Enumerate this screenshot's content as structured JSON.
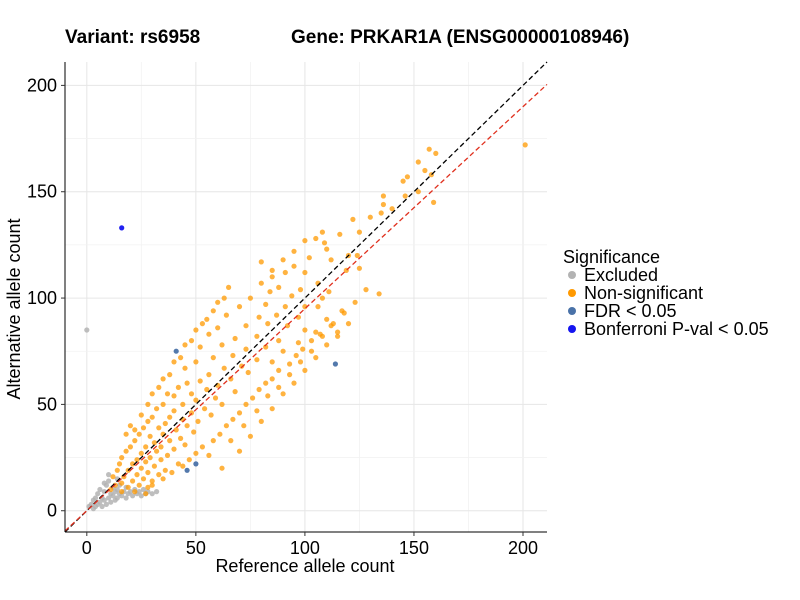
{
  "chart_data": {
    "type": "scatter",
    "title_left": "Variant: rs6958",
    "title_right": "Gene: PRKAR1A (ENSG00000108946)",
    "xlabel": "Reference allele count",
    "ylabel": "Alternative allele count",
    "xlim": [
      -10,
      211
    ],
    "ylim": [
      -10,
      211
    ],
    "xticks": [
      0,
      50,
      100,
      150,
      200
    ],
    "yticks": [
      0,
      50,
      100,
      150,
      200
    ],
    "grid": true,
    "legend": {
      "title": "Significance",
      "position": "right",
      "entries": [
        {
          "label": "Excluded",
          "color": "#b3b3b3"
        },
        {
          "label": "Non-significant",
          "color": "#ff9900"
        },
        {
          "label": "FDR < 0.05",
          "color": "#4a72a8"
        },
        {
          "label": "Bonferroni P-val < 0.05",
          "color": "#1515f0"
        }
      ]
    },
    "reference_lines": [
      {
        "name": "identity",
        "slope": 1.0,
        "color": "#000000",
        "style": "dashed"
      },
      {
        "name": "fit",
        "slope": 0.95,
        "color": "#e0301e",
        "style": "dashed"
      }
    ],
    "series": [
      {
        "name": "Excluded",
        "color": "#b3b3b3",
        "points": [
          [
            0,
            85
          ],
          [
            1,
            2
          ],
          [
            2,
            3
          ],
          [
            3,
            1
          ],
          [
            3,
            5
          ],
          [
            4,
            2
          ],
          [
            4,
            6
          ],
          [
            5,
            3
          ],
          [
            5,
            8
          ],
          [
            6,
            4
          ],
          [
            6,
            10
          ],
          [
            7,
            2
          ],
          [
            7,
            6
          ],
          [
            8,
            5
          ],
          [
            8,
            9
          ],
          [
            9,
            3
          ],
          [
            9,
            12
          ],
          [
            10,
            6
          ],
          [
            10,
            14
          ],
          [
            11,
            4
          ],
          [
            11,
            8
          ],
          [
            12,
            7
          ],
          [
            12,
            11
          ],
          [
            13,
            5
          ],
          [
            13,
            9
          ],
          [
            14,
            6
          ],
          [
            14,
            10
          ],
          [
            15,
            8
          ],
          [
            15,
            12
          ],
          [
            16,
            7
          ],
          [
            17,
            9
          ],
          [
            18,
            6
          ],
          [
            18,
            11
          ],
          [
            19,
            8
          ],
          [
            20,
            9
          ],
          [
            21,
            7
          ],
          [
            22,
            10
          ],
          [
            23,
            8
          ],
          [
            24,
            9
          ],
          [
            25,
            7
          ],
          [
            26,
            10
          ],
          [
            27,
            8
          ],
          [
            28,
            9
          ],
          [
            30,
            8
          ],
          [
            32,
            9
          ],
          [
            14,
            15
          ],
          [
            8,
            13
          ],
          [
            10,
            17
          ]
        ]
      },
      {
        "name": "Non-significant",
        "color": "#ff9900",
        "points": [
          [
            201,
            172
          ],
          [
            157,
            170
          ],
          [
            160,
            168
          ],
          [
            152,
            164
          ],
          [
            155,
            160
          ],
          [
            147,
            157
          ],
          [
            158,
            158
          ],
          [
            145,
            155
          ],
          [
            152,
            150
          ],
          [
            146,
            148
          ],
          [
            136,
            148
          ],
          [
            159,
            145
          ],
          [
            136,
            144
          ],
          [
            140,
            142
          ],
          [
            135,
            140
          ],
          [
            130,
            138
          ],
          [
            122,
            137
          ],
          [
            125,
            131
          ],
          [
            116,
            130
          ],
          [
            108,
            131
          ],
          [
            109,
            126
          ],
          [
            105,
            128
          ],
          [
            110,
            123
          ],
          [
            120,
            120
          ],
          [
            124,
            120
          ],
          [
            112,
            118
          ],
          [
            102,
            119
          ],
          [
            119,
            113
          ],
          [
            125,
            114
          ],
          [
            95,
            115
          ],
          [
            100,
            112
          ],
          [
            85,
            113
          ],
          [
            91,
            112
          ],
          [
            106,
            107
          ],
          [
            80,
            107
          ],
          [
            88,
            105
          ],
          [
            98,
            104
          ],
          [
            128,
            104
          ],
          [
            134,
            102
          ],
          [
            111,
            103
          ],
          [
            84,
            103
          ],
          [
            94,
            101
          ],
          [
            108,
            100
          ],
          [
            75,
            100
          ],
          [
            82,
            97
          ],
          [
            91,
            96
          ],
          [
            100,
            96
          ],
          [
            106,
            96
          ],
          [
            117,
            94
          ],
          [
            70,
            96
          ],
          [
            87,
            92
          ],
          [
            97,
            91
          ],
          [
            79,
            91
          ],
          [
            64,
            92
          ],
          [
            110,
            90
          ],
          [
            83,
            88
          ],
          [
            92,
            87
          ],
          [
            100,
            85
          ],
          [
            73,
            87
          ],
          [
            60,
            86
          ],
          [
            105,
            84
          ],
          [
            115,
            84
          ],
          [
            78,
            82
          ],
          [
            88,
            80
          ],
          [
            68,
            81
          ],
          [
            56,
            83
          ],
          [
            97,
            79
          ],
          [
            82,
            77
          ],
          [
            73,
            76
          ],
          [
            62,
            78
          ],
          [
            90,
            75
          ],
          [
            52,
            77
          ],
          [
            78,
            71
          ],
          [
            67,
            73
          ],
          [
            58,
            72
          ],
          [
            85,
            70
          ],
          [
            71,
            68
          ],
          [
            50,
            70
          ],
          [
            63,
            67
          ],
          [
            74,
            65
          ],
          [
            56,
            64
          ],
          [
            45,
            67
          ],
          [
            66,
            62
          ],
          [
            52,
            61
          ],
          [
            60,
            59
          ],
          [
            46,
            60
          ],
          [
            55,
            57
          ],
          [
            42,
            58
          ],
          [
            68,
            56
          ],
          [
            48,
            55
          ],
          [
            40,
            54
          ],
          [
            59,
            53
          ],
          [
            37,
            55
          ],
          [
            50,
            52
          ],
          [
            44,
            50
          ],
          [
            62,
            50
          ],
          [
            35,
            50
          ],
          [
            54,
            48
          ],
          [
            40,
            47
          ],
          [
            48,
            46
          ],
          [
            32,
            48
          ],
          [
            57,
            45
          ],
          [
            38,
            44
          ],
          [
            44,
            43
          ],
          [
            30,
            44
          ],
          [
            51,
            42
          ],
          [
            36,
            41
          ],
          [
            28,
            42
          ],
          [
            46,
            40
          ],
          [
            33,
            39
          ],
          [
            41,
            38
          ],
          [
            26,
            39
          ],
          [
            49,
            37
          ],
          [
            35,
            36
          ],
          [
            29,
            35
          ],
          [
            43,
            34
          ],
          [
            24,
            36
          ],
          [
            38,
            33
          ],
          [
            31,
            32
          ],
          [
            22,
            33
          ],
          [
            45,
            31
          ],
          [
            34,
            30
          ],
          [
            27,
            30
          ],
          [
            40,
            29
          ],
          [
            20,
            30
          ],
          [
            32,
            28
          ],
          [
            25,
            27
          ],
          [
            37,
            26
          ],
          [
            18,
            28
          ],
          [
            29,
            25
          ],
          [
            23,
            24
          ],
          [
            34,
            24
          ],
          [
            16,
            25
          ],
          [
            27,
            23
          ],
          [
            42,
            22
          ],
          [
            21,
            22
          ],
          [
            31,
            21
          ],
          [
            15,
            22
          ],
          [
            25,
            20
          ],
          [
            36,
            19
          ],
          [
            19,
            19
          ],
          [
            28,
            18
          ],
          [
            14,
            19
          ],
          [
            23,
            17
          ],
          [
            33,
            17
          ],
          [
            17,
            16
          ],
          [
            26,
            15
          ],
          [
            12,
            16
          ],
          [
            21,
            14
          ],
          [
            30,
            14
          ],
          [
            16,
            13
          ],
          [
            24,
            12
          ],
          [
            13,
            12
          ],
          [
            19,
            11
          ],
          [
            28,
            11
          ],
          [
            11,
            10
          ],
          [
            22,
            9
          ],
          [
            16,
            9
          ],
          [
            27,
            8
          ],
          [
            30,
            12
          ],
          [
            35,
            15
          ],
          [
            39,
            18
          ],
          [
            44,
            21
          ],
          [
            47,
            24
          ],
          [
            50,
            27
          ],
          [
            53,
            30
          ],
          [
            58,
            33
          ],
          [
            61,
            36
          ],
          [
            64,
            40
          ],
          [
            67,
            43
          ],
          [
            70,
            46
          ],
          [
            73,
            50
          ],
          [
            76,
            53
          ],
          [
            79,
            57
          ],
          [
            82,
            60
          ],
          [
            85,
            62
          ],
          [
            88,
            66
          ],
          [
            93,
            69
          ],
          [
            96,
            73
          ],
          [
            99,
            76
          ],
          [
            103,
            80
          ],
          [
            107,
            83
          ],
          [
            112,
            87
          ],
          [
            20,
            40
          ],
          [
            25,
            45
          ],
          [
            30,
            55
          ],
          [
            35,
            62
          ],
          [
            40,
            70
          ],
          [
            45,
            78
          ],
          [
            50,
            85
          ],
          [
            55,
            90
          ],
          [
            60,
            98
          ],
          [
            65,
            105
          ],
          [
            18,
            36
          ],
          [
            22,
            38
          ],
          [
            28,
            50
          ],
          [
            33,
            58
          ],
          [
            38,
            64
          ],
          [
            43,
            72
          ],
          [
            48,
            80
          ],
          [
            53,
            88
          ],
          [
            58,
            94
          ],
          [
            63,
            100
          ],
          [
            80,
            117
          ],
          [
            85,
            110
          ],
          [
            90,
            118
          ],
          [
            95,
            122
          ],
          [
            100,
            127
          ],
          [
            62,
            20
          ],
          [
            70,
            28
          ],
          [
            75,
            35
          ],
          [
            80,
            42
          ],
          [
            85,
            48
          ],
          [
            90,
            55
          ],
          [
            95,
            60
          ],
          [
            100,
            66
          ],
          [
            105,
            72
          ],
          [
            110,
            78
          ],
          [
            115,
            82
          ],
          [
            120,
            88
          ],
          [
            56,
            26
          ],
          [
            66,
            33
          ],
          [
            72,
            40
          ],
          [
            78,
            47
          ],
          [
            83,
            54
          ],
          [
            88,
            58
          ],
          [
            93,
            64
          ],
          [
            98,
            70
          ],
          [
            103,
            75
          ],
          [
            108,
            82
          ],
          [
            113,
            88
          ],
          [
            118,
            93
          ],
          [
            123,
            98
          ]
        ]
      },
      {
        "name": "FDR < 0.05",
        "color": "#4a72a8",
        "points": [
          [
            41,
            75
          ],
          [
            114,
            69
          ],
          [
            46,
            19
          ],
          [
            50,
            22
          ]
        ]
      },
      {
        "name": "Bonferroni P-val < 0.05",
        "color": "#1515f0",
        "points": [
          [
            16,
            133
          ]
        ]
      }
    ]
  }
}
